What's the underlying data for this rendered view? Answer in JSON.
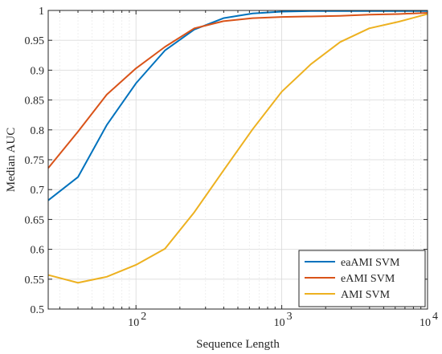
{
  "chart_data": {
    "type": "line",
    "xlabel": "Sequence Length",
    "ylabel": "Median AUC",
    "xscale": "log",
    "xlim": [
      25,
      10000
    ],
    "ylim": [
      0.5,
      1.0
    ],
    "grid": true,
    "legend_position": "bottom-right",
    "x_ticks": [
      {
        "value": 100,
        "base": "10",
        "exp": "2"
      },
      {
        "value": 1000,
        "base": "10",
        "exp": "3"
      },
      {
        "value": 10000,
        "base": "10",
        "exp": "4"
      }
    ],
    "y_ticks": [
      {
        "value": 0.5,
        "label": "0.5"
      },
      {
        "value": 0.55,
        "label": "0.55"
      },
      {
        "value": 0.6,
        "label": "0.6"
      },
      {
        "value": 0.65,
        "label": "0.65"
      },
      {
        "value": 0.7,
        "label": "0.7"
      },
      {
        "value": 0.75,
        "label": "0.75"
      },
      {
        "value": 0.8,
        "label": "0.8"
      },
      {
        "value": 0.85,
        "label": "0.85"
      },
      {
        "value": 0.9,
        "label": "0.9"
      },
      {
        "value": 0.95,
        "label": "0.95"
      },
      {
        "value": 1.0,
        "label": "1"
      }
    ],
    "x": [
      25,
      40,
      63,
      100,
      158,
      251,
      398,
      631,
      1000,
      1585,
      2512,
      3981,
      6310,
      10000
    ],
    "series": [
      {
        "name": "eaAMI SVM",
        "color": "#0072BD",
        "values": [
          0.682,
          0.721,
          0.808,
          0.878,
          0.933,
          0.968,
          0.987,
          0.995,
          0.998,
          0.999,
          0.999,
          0.999,
          0.999,
          0.999
        ]
      },
      {
        "name": "eAMI SVM",
        "color": "#D95319",
        "values": [
          0.736,
          0.797,
          0.859,
          0.903,
          0.939,
          0.97,
          0.982,
          0.987,
          0.989,
          0.99,
          0.991,
          0.993,
          0.994,
          0.996
        ]
      },
      {
        "name": "AMI SVM",
        "color": "#EDB120",
        "values": [
          0.557,
          0.544,
          0.554,
          0.574,
          0.601,
          0.662,
          0.732,
          0.801,
          0.864,
          0.91,
          0.947,
          0.97,
          0.981,
          0.994
        ]
      }
    ]
  }
}
